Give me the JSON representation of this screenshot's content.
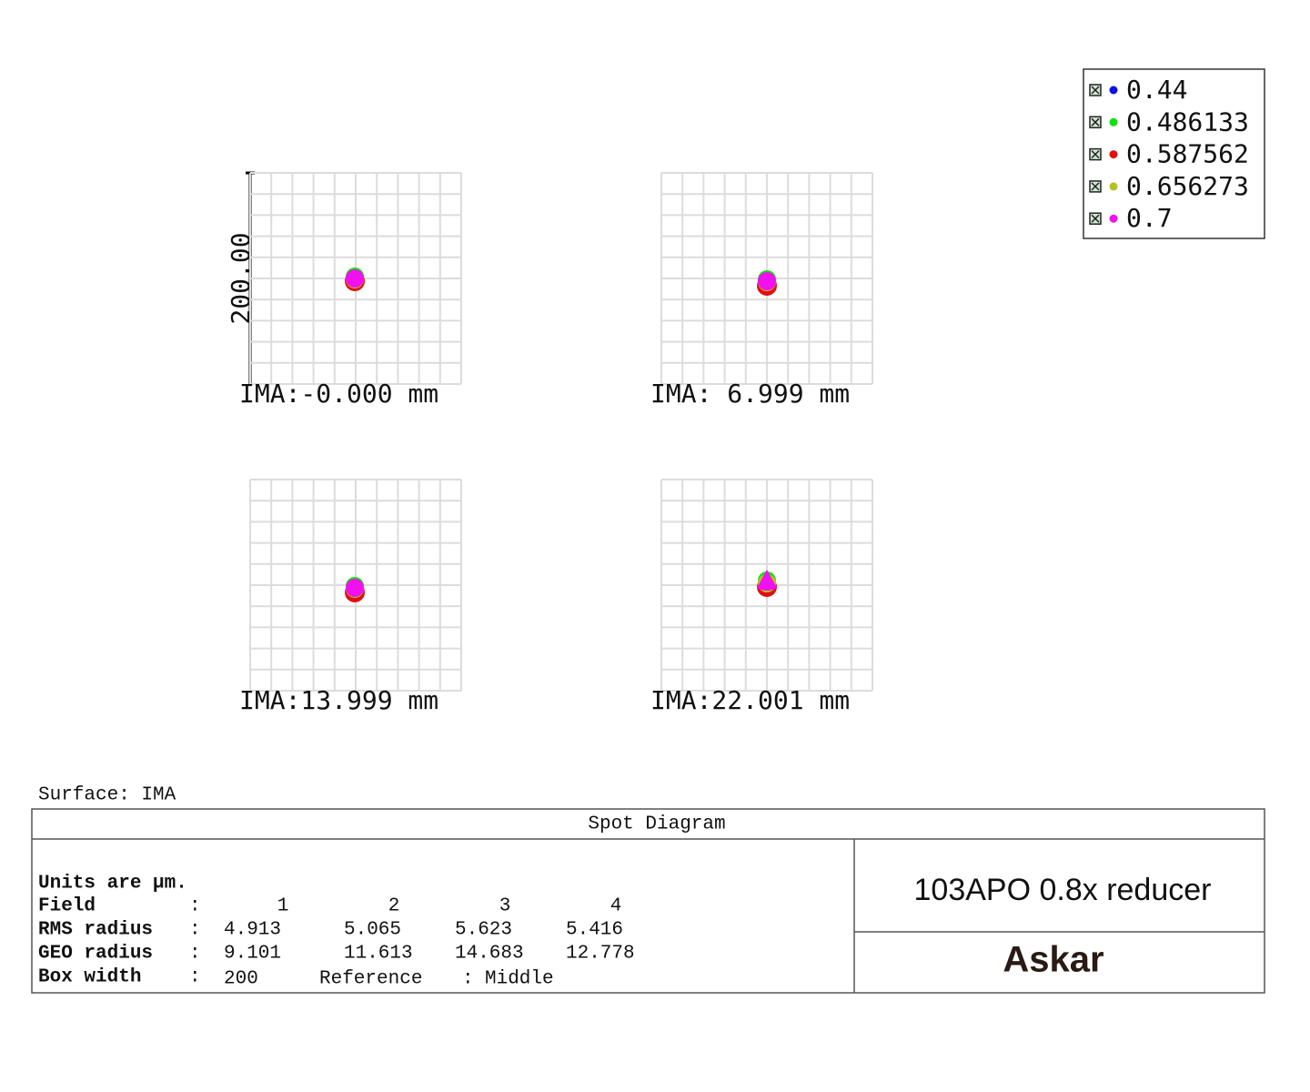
{
  "legend": {
    "items": [
      {
        "label": "0.44",
        "color": "#1010e0"
      },
      {
        "label": "0.486133",
        "color": "#10e010"
      },
      {
        "label": "0.587562",
        "color": "#e01010"
      },
      {
        "label": "0.656273",
        "color": "#b8c020"
      },
      {
        "label": "0.7",
        "color": "#f010f0"
      }
    ]
  },
  "scale_label": "200.00",
  "panels": [
    {
      "label": "IMA:-0.000 mm"
    },
    {
      "label": "IMA: 6.999 mm"
    },
    {
      "label": "IMA:13.999 mm"
    },
    {
      "label": "IMA:22.001 mm"
    }
  ],
  "surface": "Surface: IMA",
  "table": {
    "title": "Spot Diagram",
    "units": "Units are µm.",
    "separator": ":",
    "field": {
      "label": "Field",
      "values": [
        1,
        2,
        3,
        4
      ]
    },
    "rms": {
      "label": "RMS radius",
      "values": [
        4.913,
        5.065,
        5.623,
        5.416
      ]
    },
    "geo": {
      "label": "GEO radius",
      "values": [
        9.101,
        11.613,
        14.683,
        12.778
      ]
    },
    "box": {
      "label": "Box width",
      "value": 200,
      "reference_label": "Reference",
      "reference_value": "Middle"
    },
    "product": "103APO 0.8x reducer",
    "brand": "Askar"
  }
}
